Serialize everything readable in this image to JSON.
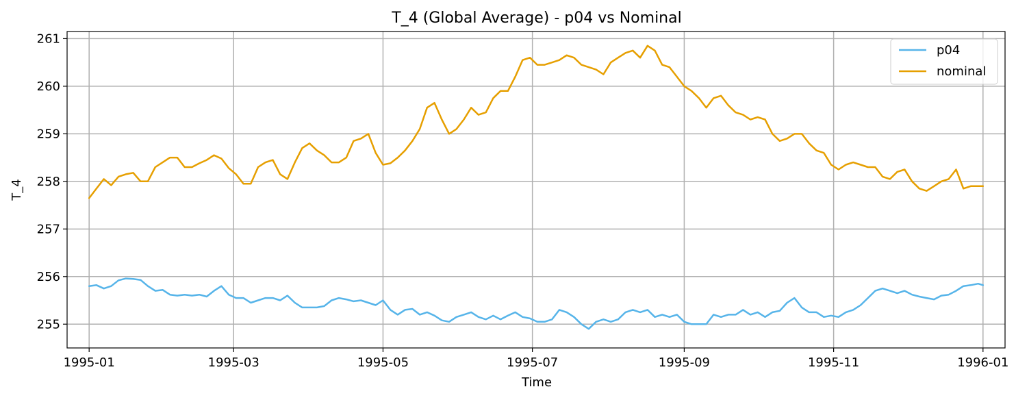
{
  "chart_data": {
    "type": "line",
    "title": "T_4 (Global Average) - p04 vs Nominal",
    "xlabel": "Time",
    "ylabel": "T_4",
    "x_range_days": [
      -9,
      374
    ],
    "ylim": [
      254.5,
      261.15
    ],
    "x_ticks": [
      {
        "label": "1995-01",
        "day": 0
      },
      {
        "label": "1995-03",
        "day": 59
      },
      {
        "label": "1995-05",
        "day": 120
      },
      {
        "label": "1995-07",
        "day": 181
      },
      {
        "label": "1995-09",
        "day": 243
      },
      {
        "label": "1995-11",
        "day": 304
      },
      {
        "label": "1996-01",
        "day": 365
      }
    ],
    "y_ticks": [
      255,
      256,
      257,
      258,
      259,
      260,
      261
    ],
    "grid": true,
    "legend_position": "top-right",
    "x_unit": "days since 1995-01-01",
    "series": [
      {
        "name": "p04",
        "color": "#56b4e9",
        "x": [
          0,
          3,
          6,
          9,
          12,
          15,
          18,
          21,
          24,
          27,
          30,
          33,
          36,
          39,
          42,
          45,
          48,
          51,
          54,
          57,
          60,
          63,
          66,
          69,
          72,
          75,
          78,
          81,
          84,
          87,
          90,
          93,
          96,
          99,
          102,
          105,
          108,
          111,
          114,
          117,
          120,
          123,
          126,
          129,
          132,
          135,
          138,
          141,
          144,
          147,
          150,
          153,
          156,
          159,
          162,
          165,
          168,
          171,
          174,
          177,
          180,
          183,
          186,
          189,
          192,
          195,
          198,
          201,
          204,
          207,
          210,
          213,
          216,
          219,
          222,
          225,
          228,
          231,
          234,
          237,
          240,
          243,
          246,
          249,
          252,
          255,
          258,
          261,
          264,
          267,
          270,
          273,
          276,
          279,
          282,
          285,
          288,
          291,
          294,
          297,
          300,
          303,
          306,
          309,
          312,
          315,
          318,
          321,
          324,
          327,
          330,
          333,
          336,
          339,
          342,
          345,
          348,
          351,
          354,
          357,
          360,
          363,
          365
        ],
        "values": [
          255.8,
          255.82,
          255.75,
          255.8,
          255.92,
          255.96,
          255.95,
          255.93,
          255.8,
          255.7,
          255.72,
          255.62,
          255.6,
          255.62,
          255.6,
          255.62,
          255.58,
          255.7,
          255.8,
          255.62,
          255.55,
          255.55,
          255.45,
          255.5,
          255.55,
          255.55,
          255.5,
          255.6,
          255.45,
          255.35,
          255.35,
          255.35,
          255.38,
          255.5,
          255.55,
          255.52,
          255.48,
          255.5,
          255.45,
          255.4,
          255.5,
          255.3,
          255.2,
          255.3,
          255.32,
          255.2,
          255.25,
          255.18,
          255.08,
          255.05,
          255.15,
          255.2,
          255.25,
          255.15,
          255.1,
          255.18,
          255.1,
          255.18,
          255.25,
          255.15,
          255.12,
          255.05,
          255.05,
          255.1,
          255.3,
          255.25,
          255.15,
          255.0,
          254.9,
          255.05,
          255.1,
          255.05,
          255.1,
          255.25,
          255.3,
          255.25,
          255.3,
          255.15,
          255.2,
          255.15,
          255.2,
          255.05,
          255.0,
          255.0,
          255.0,
          255.2,
          255.15,
          255.2,
          255.2,
          255.3,
          255.2,
          255.25,
          255.15,
          255.25,
          255.28,
          255.45,
          255.55,
          255.35,
          255.25,
          255.25,
          255.15,
          255.18,
          255.15,
          255.25,
          255.3,
          255.4,
          255.55,
          255.7,
          255.75,
          255.7,
          255.65,
          255.7,
          255.62,
          255.58,
          255.55,
          255.52,
          255.6,
          255.62,
          255.7,
          255.8,
          255.82,
          255.85,
          255.82
        ]
      },
      {
        "name": "nominal",
        "color": "#e69f00",
        "x": [
          0,
          3,
          6,
          9,
          12,
          15,
          18,
          21,
          24,
          27,
          30,
          33,
          36,
          39,
          42,
          45,
          48,
          51,
          54,
          57,
          60,
          63,
          66,
          69,
          72,
          75,
          78,
          81,
          84,
          87,
          90,
          93,
          96,
          99,
          102,
          105,
          108,
          111,
          114,
          117,
          120,
          123,
          126,
          129,
          132,
          135,
          138,
          141,
          144,
          147,
          150,
          153,
          156,
          159,
          162,
          165,
          168,
          171,
          174,
          177,
          180,
          183,
          186,
          189,
          192,
          195,
          198,
          201,
          204,
          207,
          210,
          213,
          216,
          219,
          222,
          225,
          228,
          231,
          234,
          237,
          240,
          243,
          246,
          249,
          252,
          255,
          258,
          261,
          264,
          267,
          270,
          273,
          276,
          279,
          282,
          285,
          288,
          291,
          294,
          297,
          300,
          303,
          306,
          309,
          312,
          315,
          318,
          321,
          324,
          327,
          330,
          333,
          336,
          339,
          342,
          345,
          348,
          351,
          354,
          357,
          360,
          363,
          365
        ],
        "values": [
          257.65,
          257.85,
          258.05,
          257.92,
          258.1,
          258.15,
          258.18,
          258.0,
          258.0,
          258.3,
          258.4,
          258.5,
          258.5,
          258.3,
          258.3,
          258.38,
          258.45,
          258.55,
          258.48,
          258.28,
          258.15,
          257.95,
          257.95,
          258.3,
          258.4,
          258.45,
          258.15,
          258.05,
          258.4,
          258.7,
          258.8,
          258.65,
          258.55,
          258.4,
          258.4,
          258.5,
          258.85,
          258.9,
          259.0,
          258.6,
          258.35,
          258.38,
          258.5,
          258.65,
          258.85,
          259.1,
          259.55,
          259.65,
          259.3,
          259.0,
          259.1,
          259.3,
          259.55,
          259.4,
          259.45,
          259.75,
          259.9,
          259.9,
          260.2,
          260.55,
          260.6,
          260.45,
          260.45,
          260.5,
          260.55,
          260.65,
          260.6,
          260.45,
          260.4,
          260.35,
          260.25,
          260.5,
          260.6,
          260.7,
          260.75,
          260.6,
          260.85,
          260.75,
          260.45,
          260.4,
          260.2,
          260.0,
          259.9,
          259.75,
          259.55,
          259.75,
          259.8,
          259.6,
          259.45,
          259.4,
          259.3,
          259.35,
          259.3,
          259.0,
          258.85,
          258.9,
          259.0,
          259.0,
          258.8,
          258.65,
          258.6,
          258.35,
          258.25,
          258.35,
          258.4,
          258.35,
          258.3,
          258.3,
          258.1,
          258.05,
          258.2,
          258.25,
          258.0,
          257.85,
          257.8,
          257.9,
          258.0,
          258.05,
          258.25,
          257.85,
          257.9,
          257.9,
          257.9
        ]
      }
    ]
  }
}
